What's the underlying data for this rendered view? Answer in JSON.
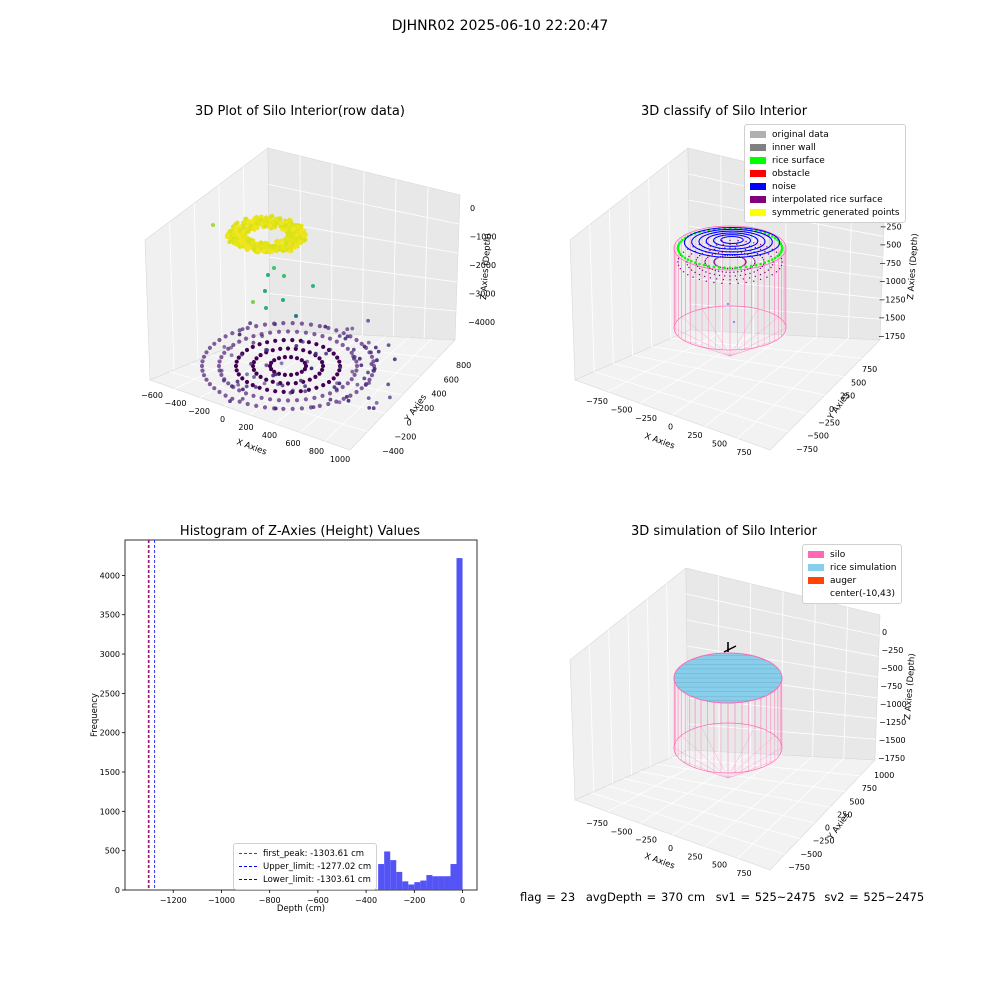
{
  "suptitle": "DJHNR02 2025-06-10 22:20:47",
  "status": {
    "flag": "flag = 23",
    "avg_depth": "avgDepth = 370 cm",
    "sv1": "sv1 = 525~2475",
    "sv2": "sv2 = 525~2475"
  },
  "colors": {
    "original_data": "#b0b0b0",
    "inner_wall": "#808080",
    "rice_surface": "#00ff00",
    "obstacle": "#ff0000",
    "noise": "#0000ff",
    "interpolated": "#800080",
    "symmetric": "#ffff00",
    "silo": "#ff69b4",
    "rice_sim": "#87ceeb",
    "auger": "#ff4500",
    "hist_bar": "#4a4af5"
  },
  "chart_data": [
    {
      "type": "scatter",
      "title": "3D Plot of Silo Interior(row data)",
      "xlabel": "X Axies",
      "ylabel": "Y Axies",
      "zlabel": "Z Axies (Depth)",
      "xticks": [
        "−600",
        "−400",
        "−200",
        "0",
        "200",
        "400",
        "600",
        "800",
        "1000"
      ],
      "yticks": [
        "−400",
        "−200",
        "0",
        "200",
        "400",
        "600",
        "800"
      ],
      "zticks": [
        "0",
        "−1000",
        "−2000",
        "−3000",
        "−4000"
      ],
      "xlim": [
        -600,
        1000
      ],
      "ylim": [
        -400,
        800
      ],
      "zlim": [
        -4200,
        0
      ],
      "colormap": "viridis"
    },
    {
      "type": "scatter",
      "title": "3D classify of Silo Interior",
      "xlabel": "X Axies",
      "ylabel": "Y Axies",
      "zlabel": "Z Axies (Depth)",
      "xticks": [
        "−750",
        "−500",
        "−250",
        "0",
        "250",
        "500",
        "750"
      ],
      "yticks": [
        "−750",
        "−500",
        "−250",
        "0",
        "250",
        "500",
        "750"
      ],
      "zticks": [
        "0",
        "−250",
        "−500",
        "−750",
        "−1000",
        "−1250",
        "−1500",
        "−1750"
      ],
      "legend": [
        "original data",
        "inner wall",
        "rice surface",
        "obstacle",
        "noise",
        "interpolated rice surface",
        "symmetric generated points"
      ],
      "legend_position": "top-right"
    },
    {
      "type": "bar",
      "title": "Histogram of Z-Axies (Height) Values",
      "xlabel": "Depth (cm)",
      "ylabel": "Frequency",
      "xlim": [
        -1400,
        60
      ],
      "ylim": [
        0,
        4450
      ],
      "xticks": [
        -1200,
        -1000,
        -800,
        -600,
        -400,
        -200,
        0
      ],
      "xtick_labels": [
        "−1200",
        "−1000",
        "−800",
        "−600",
        "−400",
        "−200",
        "0"
      ],
      "yticks": [
        0,
        500,
        1000,
        1500,
        2000,
        2500,
        3000,
        3500,
        4000
      ],
      "bins": [
        {
          "x0": -370,
          "x1": -350,
          "count": 5
        },
        {
          "x0": -350,
          "x1": -325,
          "count": 330
        },
        {
          "x0": -325,
          "x1": -300,
          "count": 490
        },
        {
          "x0": -300,
          "x1": -275,
          "count": 380
        },
        {
          "x0": -275,
          "x1": -250,
          "count": 230
        },
        {
          "x0": -250,
          "x1": -225,
          "count": 110
        },
        {
          "x0": -225,
          "x1": -200,
          "count": 70
        },
        {
          "x0": -200,
          "x1": -175,
          "count": 100
        },
        {
          "x0": -175,
          "x1": -150,
          "count": 120
        },
        {
          "x0": -150,
          "x1": -125,
          "count": 190
        },
        {
          "x0": -125,
          "x1": -100,
          "count": 175
        },
        {
          "x0": -100,
          "x1": -75,
          "count": 175
        },
        {
          "x0": -75,
          "x1": -50,
          "count": 175
        },
        {
          "x0": -50,
          "x1": -25,
          "count": 330
        },
        {
          "x0": -25,
          "x1": 0,
          "count": 4220
        }
      ],
      "vlines": [
        {
          "label": "first_peak: -1303.61 cm",
          "x": -1303.61,
          "color": "#ff0000"
        },
        {
          "label": "Upper_limit: -1277.02 cm",
          "x": -1277.02,
          "color": "#0000ff"
        },
        {
          "label": "Lower_limit: -1303.61 cm",
          "x": -1303.61,
          "color": "#0000ff"
        }
      ],
      "legend_position": "lower-right"
    },
    {
      "type": "scatter",
      "title": "3D simulation of Silo Interior",
      "xlabel": "X Axies",
      "ylabel": "Y Axies",
      "zlabel": "Z Axies (Depth)",
      "xticks": [
        "−750",
        "−500",
        "−250",
        "0",
        "250",
        "500",
        "750"
      ],
      "yticks": [
        "−750",
        "−500",
        "−250",
        "0",
        "250",
        "500",
        "750",
        "1000"
      ],
      "zticks": [
        "0",
        "−250",
        "−500",
        "−750",
        "−1000",
        "−1250",
        "−1500",
        "−1750"
      ],
      "legend": [
        "silo",
        "rice simulation",
        "auger",
        "center(-10,43)"
      ],
      "legend_position": "top-right"
    }
  ]
}
